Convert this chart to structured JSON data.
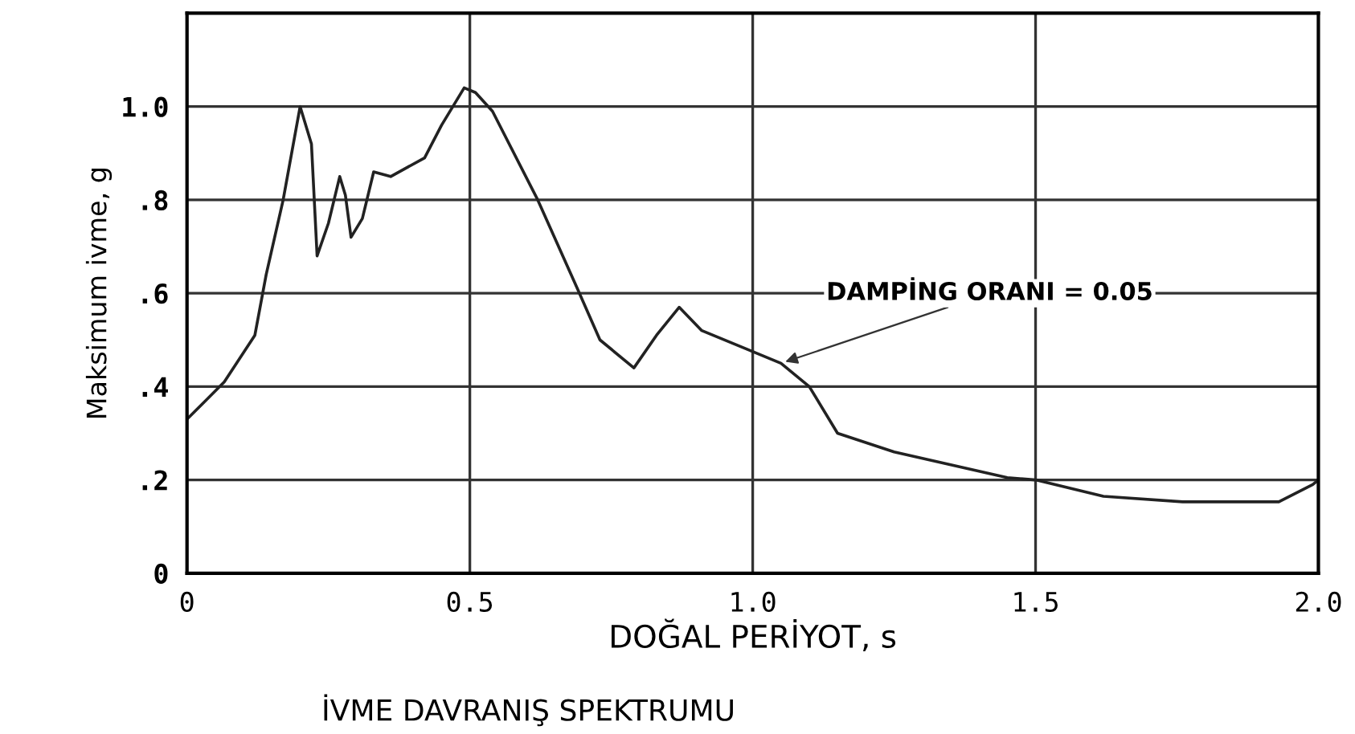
{
  "chart_data": {
    "type": "line",
    "title": "İVME DAVRANIŞ SPEKTRUMU",
    "xlabel": "DOĞAL PERİYOT, s",
    "ylabel": "Maksimum ivme, g",
    "x": [
      0,
      0.066,
      0.12,
      0.14,
      0.17,
      0.2,
      0.22,
      0.23,
      0.25,
      0.27,
      0.28,
      0.29,
      0.31,
      0.32,
      0.33,
      0.36,
      0.42,
      0.45,
      0.49,
      0.51,
      0.54,
      0.62,
      0.69,
      0.73,
      0.79,
      0.83,
      0.87,
      0.91,
      0.99,
      1.05,
      1.1,
      1.15,
      1.25,
      1.45,
      1.5,
      1.62,
      1.76,
      1.93,
      1.99,
      2.0
    ],
    "series": [
      {
        "color": "#222222",
        "values": [
          0.33,
          0.41,
          0.51,
          0.64,
          0.8,
          1.0,
          0.92,
          0.68,
          0.75,
          0.85,
          0.81,
          0.72,
          0.76,
          0.81,
          0.86,
          0.85,
          0.89,
          0.96,
          1.04,
          1.03,
          0.99,
          0.8,
          0.61,
          0.5,
          0.44,
          0.51,
          0.57,
          0.52,
          0.48,
          0.45,
          0.4,
          0.3,
          0.26,
          0.205,
          0.2,
          0.165,
          0.153,
          0.153,
          0.19,
          0.2
        ]
      }
    ],
    "xlim": [
      0,
      2.0
    ],
    "ylim": [
      0,
      1.2
    ],
    "xticks": [
      0,
      {
        "value": 0.5,
        "label": "0.5"
      },
      {
        "value": 1.0,
        "label": "1.0"
      },
      {
        "value": 1.5,
        "label": "1.5"
      },
      {
        "value": 2.0,
        "label": "2.0"
      }
    ],
    "yticks": [
      0,
      {
        "value": 0.2,
        "label": ".2"
      },
      {
        "value": 0.4,
        "label": ".4"
      },
      {
        "value": 0.6,
        "label": ".6"
      },
      {
        "value": 0.8,
        "label": ".8"
      },
      {
        "value": 1.0,
        "label": "1.0"
      }
    ],
    "grid": true,
    "marker": "none",
    "line_style": "solid",
    "annotations": [
      {
        "text": "DAMPİNG ORANI = 0.05",
        "x": 1.05,
        "y": 0.45
      }
    ]
  }
}
